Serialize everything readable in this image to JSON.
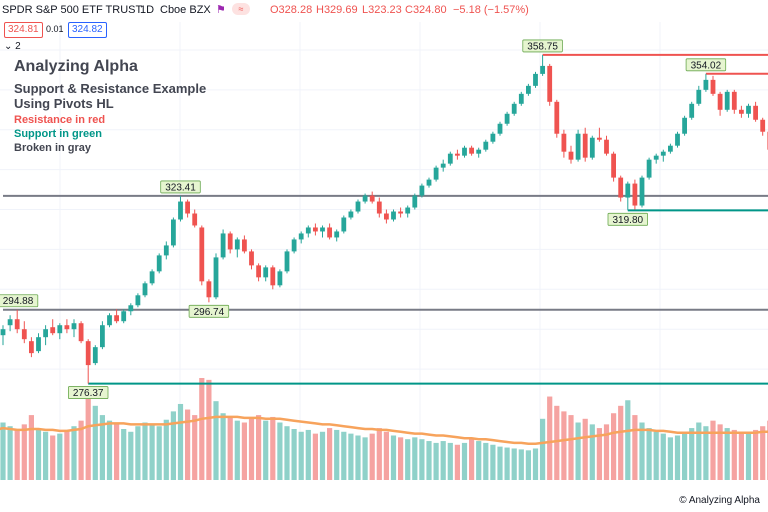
{
  "header": {
    "symbol": "SPDR S&P 500 ETF TRUST",
    "interval": "1D",
    "exchange": "Cboe BZX",
    "open": "O328.28",
    "high": "H329.69",
    "low": "L323.23",
    "close": "C324.80",
    "change": "−5.18 (−1.57%)",
    "bid": "324.81",
    "spread": "0.01",
    "ask": "324.82",
    "indicator_count": "2",
    "colors": {
      "up": "#26a69a",
      "down": "#ef5350",
      "change": "#ef5350",
      "bid": "#ef5350",
      "ask": "#2962ff"
    }
  },
  "annotations": {
    "title": "Analyzing Alpha",
    "subtitle_line1": "Support & Resistance Example",
    "subtitle_line2": "Using Pivots HL",
    "resistance_note": "Resistance in red",
    "support_note": "Support in green",
    "broken_note": "Broken in gray",
    "colors": {
      "resistance": "#ef5350",
      "support": "#009688",
      "broken": "#787b86"
    }
  },
  "watermark": "© Analyzing Alpha",
  "chart_data": {
    "type": "candlestick",
    "title": "",
    "xlabel": "",
    "ylabel": "",
    "ylim": [
      271,
      365
    ],
    "grid": true,
    "series": [
      {
        "name": "",
        "ohlc": [
          [
            288.5,
            291.0,
            286.0,
            290.0
          ],
          [
            291.0,
            293.5,
            289.5,
            292.5
          ],
          [
            292.5,
            294.88,
            289.0,
            290.0
          ],
          [
            290.0,
            292.0,
            286.5,
            287.5
          ],
          [
            287.0,
            288.0,
            283.0,
            284.0
          ],
          [
            284.5,
            289.0,
            284.0,
            288.0
          ],
          [
            288.0,
            291.0,
            286.0,
            290.0
          ],
          [
            290.5,
            292.5,
            288.5,
            289.0
          ],
          [
            289.0,
            291.5,
            287.5,
            291.0
          ],
          [
            291.0,
            292.5,
            289.0,
            290.0
          ],
          [
            290.0,
            292.5,
            288.0,
            291.5
          ],
          [
            291.5,
            292.0,
            286.5,
            287.0
          ],
          [
            287.0,
            287.5,
            276.37,
            281.0
          ],
          [
            281.5,
            286.0,
            281.0,
            285.5
          ],
          [
            285.5,
            292.0,
            285.0,
            291.0
          ],
          [
            291.0,
            294.0,
            290.5,
            293.5
          ],
          [
            293.5,
            295.0,
            291.5,
            292.0
          ],
          [
            292.0,
            295.0,
            291.5,
            294.5
          ],
          [
            294.5,
            296.5,
            293.5,
            296.0
          ],
          [
            296.0,
            299.0,
            295.5,
            298.5
          ],
          [
            298.5,
            302.0,
            298.0,
            301.5
          ],
          [
            301.5,
            305.0,
            301.0,
            304.5
          ],
          [
            304.5,
            309.0,
            304.0,
            308.5
          ],
          [
            308.5,
            312.0,
            307.5,
            311.0
          ],
          [
            311.0,
            318.0,
            310.5,
            317.5
          ],
          [
            317.5,
            323.41,
            317.0,
            322.0
          ],
          [
            322.0,
            322.5,
            318.0,
            319.0
          ],
          [
            319.0,
            320.0,
            315.5,
            316.0
          ],
          [
            315.5,
            316.0,
            301.0,
            302.0
          ],
          [
            302.0,
            302.5,
            296.74,
            298.0
          ],
          [
            298.0,
            309.0,
            297.5,
            308.0
          ],
          [
            308.0,
            315.0,
            307.5,
            314.0
          ],
          [
            314.0,
            314.5,
            309.0,
            310.0
          ],
          [
            310.0,
            313.0,
            308.0,
            312.5
          ],
          [
            312.5,
            313.5,
            309.0,
            309.5
          ],
          [
            309.5,
            310.0,
            305.0,
            306.0
          ],
          [
            306.0,
            306.5,
            302.0,
            303.0
          ],
          [
            303.0,
            306.0,
            302.0,
            305.5
          ],
          [
            305.5,
            306.0,
            300.0,
            301.0
          ],
          [
            301.0,
            305.0,
            300.5,
            304.5
          ],
          [
            304.5,
            310.0,
            304.0,
            309.5
          ],
          [
            309.5,
            313.0,
            309.0,
            312.5
          ],
          [
            312.5,
            314.5,
            311.5,
            314.0
          ],
          [
            314.0,
            316.0,
            313.0,
            315.5
          ],
          [
            315.5,
            316.5,
            313.5,
            314.5
          ],
          [
            314.5,
            316.0,
            313.0,
            315.5
          ],
          [
            315.5,
            316.5,
            312.5,
            313.0
          ],
          [
            313.0,
            315.0,
            312.0,
            314.5
          ],
          [
            314.5,
            318.5,
            314.0,
            318.0
          ],
          [
            318.0,
            320.0,
            317.5,
            319.5
          ],
          [
            319.5,
            322.5,
            319.0,
            322.0
          ],
          [
            322.0,
            324.0,
            321.5,
            323.5
          ],
          [
            323.5,
            324.5,
            321.5,
            322.0
          ],
          [
            322.0,
            323.0,
            318.0,
            319.0
          ],
          [
            319.0,
            320.0,
            316.5,
            317.5
          ],
          [
            317.5,
            320.0,
            317.0,
            319.5
          ],
          [
            319.5,
            320.5,
            318.0,
            319.0
          ],
          [
            319.0,
            321.0,
            318.0,
            320.5
          ],
          [
            320.5,
            324.0,
            320.0,
            323.5
          ],
          [
            323.5,
            326.5,
            323.0,
            326.0
          ],
          [
            326.0,
            328.0,
            325.5,
            327.5
          ],
          [
            327.5,
            331.0,
            327.0,
            330.5
          ],
          [
            330.5,
            332.5,
            329.5,
            331.5
          ],
          [
            331.5,
            334.5,
            331.0,
            334.0
          ],
          [
            334.0,
            335.0,
            332.5,
            333.5
          ],
          [
            333.5,
            336.0,
            333.0,
            335.5
          ],
          [
            335.5,
            336.0,
            333.5,
            334.0
          ],
          [
            334.0,
            335.5,
            333.0,
            335.0
          ],
          [
            335.0,
            337.5,
            334.5,
            337.0
          ],
          [
            337.0,
            339.5,
            336.5,
            339.0
          ],
          [
            339.0,
            342.0,
            338.5,
            341.5
          ],
          [
            341.5,
            344.5,
            341.0,
            344.0
          ],
          [
            344.0,
            347.0,
            343.5,
            346.5
          ],
          [
            346.5,
            349.5,
            346.0,
            349.0
          ],
          [
            349.0,
            351.5,
            348.5,
            351.0
          ],
          [
            351.0,
            354.5,
            350.5,
            354.0
          ],
          [
            354.0,
            358.75,
            353.5,
            356.0
          ],
          [
            356.0,
            356.5,
            346.0,
            347.0
          ],
          [
            347.0,
            347.5,
            338.0,
            339.0
          ],
          [
            339.0,
            340.0,
            333.0,
            334.5
          ],
          [
            334.5,
            336.0,
            331.5,
            332.5
          ],
          [
            332.5,
            340.0,
            332.0,
            339.0
          ],
          [
            339.0,
            340.5,
            332.0,
            333.0
          ],
          [
            333.0,
            338.5,
            332.5,
            338.0
          ],
          [
            338.0,
            340.5,
            337.0,
            337.5
          ],
          [
            337.5,
            338.5,
            333.5,
            334.0
          ],
          [
            334.0,
            334.5,
            327.0,
            328.0
          ],
          [
            328.0,
            328.5,
            322.0,
            323.0
          ],
          [
            323.0,
            327.0,
            319.8,
            326.5
          ],
          [
            326.5,
            327.5,
            320.0,
            321.0
          ],
          [
            321.0,
            328.5,
            320.5,
            328.0
          ],
          [
            328.0,
            333.0,
            327.5,
            332.5
          ],
          [
            332.5,
            334.0,
            331.5,
            333.5
          ],
          [
            333.5,
            335.0,
            332.0,
            334.5
          ],
          [
            334.5,
            336.5,
            334.0,
            336.0
          ],
          [
            336.0,
            339.5,
            335.5,
            339.0
          ],
          [
            339.0,
            343.5,
            338.5,
            343.0
          ],
          [
            343.0,
            347.0,
            342.5,
            346.5
          ],
          [
            346.5,
            351.0,
            346.0,
            350.0
          ],
          [
            350.0,
            354.02,
            349.5,
            352.5
          ],
          [
            352.5,
            353.5,
            348.5,
            349.0
          ],
          [
            349.0,
            349.5,
            343.5,
            345.0
          ],
          [
            345.0,
            350.0,
            344.5,
            349.5
          ],
          [
            349.5,
            350.0,
            344.0,
            345.0
          ],
          [
            345.0,
            346.0,
            343.0,
            344.0
          ],
          [
            344.0,
            346.5,
            343.0,
            346.0
          ],
          [
            346.0,
            347.0,
            342.0,
            342.5
          ],
          [
            342.5,
            343.0,
            338.5,
            339.5
          ],
          [
            339.5,
            340.0,
            334.5,
            335.0
          ],
          [
            335.0,
            335.5,
            328.0,
            329.0
          ]
        ],
        "volume": [
          62,
          58,
          55,
          60,
          70,
          54,
          52,
          48,
          50,
          53,
          58,
          64,
          95,
          80,
          70,
          64,
          60,
          55,
          52,
          58,
          62,
          60,
          58,
          65,
          74,
          82,
          76,
          70,
          110,
          108,
          85,
          72,
          68,
          64,
          62,
          66,
          70,
          64,
          68,
          62,
          58,
          55,
          52,
          54,
          50,
          52,
          56,
          54,
          52,
          50,
          48,
          46,
          50,
          56,
          52,
          48,
          46,
          44,
          46,
          44,
          42,
          40,
          42,
          40,
          38,
          40,
          44,
          42,
          40,
          38,
          36,
          35,
          34,
          33,
          32,
          34,
          66,
          90,
          80,
          74,
          70,
          62,
          66,
          60,
          56,
          60,
          72,
          80,
          86,
          70,
          62,
          56,
          52,
          50,
          46,
          48,
          50,
          56,
          62,
          58,
          64,
          60,
          56,
          54,
          52,
          50,
          54,
          58,
          64,
          84
        ],
        "volume_ma": [
          56,
          55,
          54,
          54,
          55,
          55,
          54,
          54,
          53,
          53,
          54,
          55,
          58,
          59,
          60,
          61,
          61,
          61,
          60,
          60,
          60,
          60,
          60,
          60,
          61,
          62,
          63,
          64,
          66,
          67,
          68,
          68,
          68,
          68,
          67,
          67,
          67,
          66,
          66,
          66,
          65,
          64,
          63,
          62,
          61,
          60,
          60,
          59,
          58,
          57,
          56,
          55,
          55,
          54,
          54,
          53,
          52,
          51,
          50,
          50,
          49,
          48,
          48,
          47,
          46,
          45,
          45,
          44,
          44,
          43,
          42,
          41,
          40,
          40,
          39,
          39,
          40,
          41,
          42,
          43,
          44,
          45,
          46,
          47,
          48,
          49,
          51,
          52,
          53,
          54,
          54,
          54,
          53,
          53,
          52,
          51,
          51,
          51,
          51,
          51,
          51,
          51,
          51,
          51,
          51,
          51,
          51,
          52,
          52,
          52
        ]
      }
    ],
    "pivot_labels": [
      {
        "bar": 2,
        "value": "294.88",
        "type": "high"
      },
      {
        "bar": 12,
        "value": "276.37",
        "type": "low"
      },
      {
        "bar": 25,
        "value": "323.41",
        "type": "high"
      },
      {
        "bar": 29,
        "value": "296.74",
        "type": "low"
      },
      {
        "bar": 76,
        "value": "358.75",
        "type": "high"
      },
      {
        "bar": 88,
        "value": "319.80",
        "type": "low"
      },
      {
        "bar": 99,
        "value": "354.02",
        "type": "high"
      }
    ],
    "levels": [
      {
        "value": 358.75,
        "start_bar": 76,
        "status": "resistance"
      },
      {
        "value": 354.02,
        "start_bar": 99,
        "status": "resistance"
      },
      {
        "value": 323.41,
        "start_bar": 0,
        "status": "broken"
      },
      {
        "value": 319.8,
        "start_bar": 88,
        "status": "support"
      },
      {
        "value": 294.88,
        "start_bar": 0,
        "status": "broken"
      },
      {
        "value": 276.37,
        "start_bar": 12,
        "status": "support"
      }
    ],
    "colors": {
      "up": "#26a69a",
      "down": "#ef5350",
      "vol_up": "#8fd1c9",
      "vol_down": "#f5a3a1",
      "vol_ma": "#f7a35c",
      "resistance": "#ef5350",
      "support": "#009688",
      "broken": "#787b86",
      "label_bg": "#e6f5d0",
      "label_border": "#6aa84f",
      "grid": "#f0f3fa"
    }
  }
}
